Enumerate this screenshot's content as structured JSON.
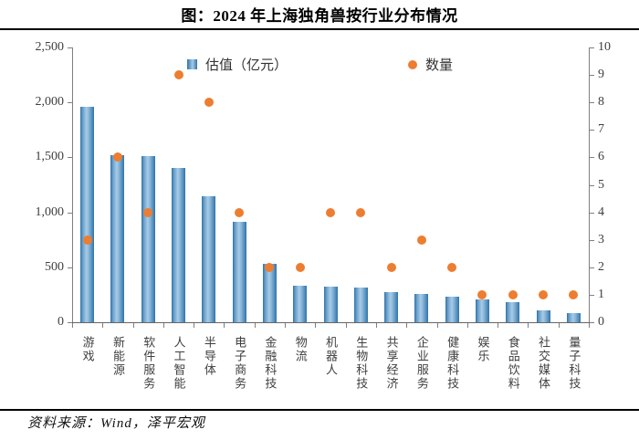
{
  "title": "图：2024 年上海独角兽按行业分布情况",
  "footer": "资料来源：Wind，泽平宏观",
  "colors": {
    "bar_edge": "#2f74ab",
    "bar_mid": "#a8cbe6",
    "dot": "#ed7d31",
    "axis": "#7f7f7f",
    "text": "#3f3f3f"
  },
  "chart_data": {
    "type": "bar",
    "title": "图：2024 年上海独角兽按行业分布情况",
    "categories": [
      "游戏",
      "新能源",
      "软件服务",
      "人工智能",
      "半导体",
      "电子商务",
      "金融科技",
      "物流",
      "机器人",
      "生物科技",
      "共享经济",
      "企业服务",
      "健康科技",
      "娱乐",
      "食品饮料",
      "社交媒体",
      "量子科技"
    ],
    "series": [
      {
        "name": "估值（亿元）",
        "type": "bar",
        "axis": "left",
        "values": [
          1960,
          1520,
          1515,
          1400,
          1150,
          910,
          530,
          330,
          325,
          315,
          275,
          255,
          235,
          210,
          180,
          105,
          80
        ]
      },
      {
        "name": "数量",
        "type": "scatter",
        "axis": "right",
        "values": [
          3,
          6,
          4,
          9,
          8,
          4,
          2,
          2,
          4,
          4,
          2,
          3,
          2,
          1,
          1,
          1,
          1
        ]
      }
    ],
    "left_axis": {
      "min": 0,
      "max": 2500,
      "step": 500,
      "ticks": [
        "0",
        "500",
        "1,000",
        "1,500",
        "2,000",
        "2,500"
      ]
    },
    "right_axis": {
      "min": 0,
      "max": 10,
      "step": 1,
      "ticks": [
        "0",
        "1",
        "2",
        "3",
        "4",
        "5",
        "6",
        "7",
        "8",
        "9",
        "10"
      ]
    },
    "grid": false,
    "legend_position": "top-inside",
    "xlabel": "",
    "ylabel": ""
  }
}
